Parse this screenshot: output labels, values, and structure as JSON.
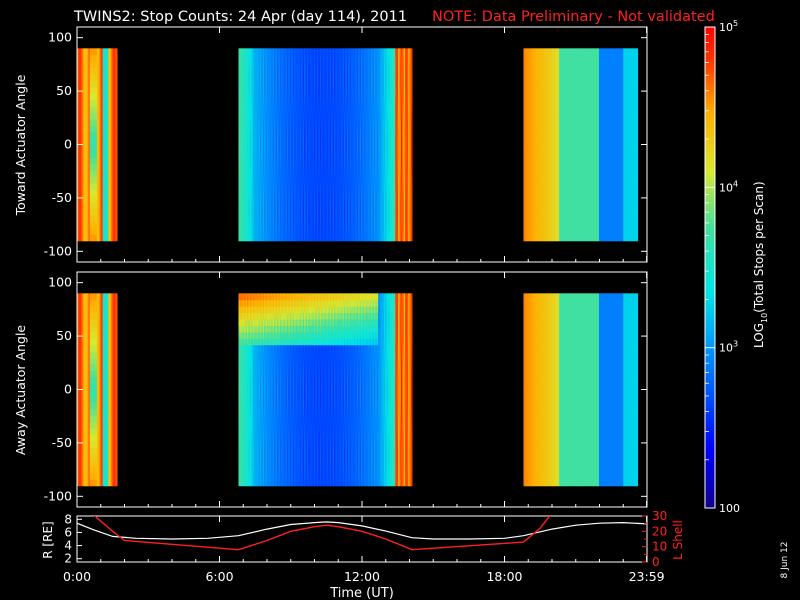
{
  "header": {
    "title": "TWINS2: Stop Counts: 24 Apr (day 114), 2011",
    "note": "NOTE: Data Preliminary - Not validated"
  },
  "chart_data": [
    {
      "type": "heatmap",
      "panel": "toward",
      "ylabel": "Toward Actuator Angle",
      "ylim": [
        -110,
        110
      ],
      "y_range_data": [
        -90,
        90
      ],
      "yticks": [
        "100",
        "50",
        "0",
        "-50",
        "-100"
      ],
      "data_segments_hours": [
        [
          0.0,
          1.7
        ],
        [
          6.8,
          14.1
        ],
        [
          18.8,
          23.6
        ]
      ],
      "color_scale": "log",
      "note": "per-bin values approximated by color"
    },
    {
      "type": "heatmap",
      "panel": "away",
      "ylabel": "Away Actuator Angle",
      "ylim": [
        -110,
        110
      ],
      "y_range_data": [
        -90,
        90
      ],
      "yticks": [
        "100",
        "50",
        "0",
        "-50",
        "-100"
      ],
      "data_segments_hours": [
        [
          0.0,
          1.7
        ],
        [
          6.8,
          14.1
        ],
        [
          18.8,
          23.6
        ]
      ],
      "color_scale": "log"
    },
    {
      "type": "line",
      "panel": "orbit",
      "xlabel": "Time (UT)",
      "xticks": [
        "0:00",
        "6:00",
        "12:00",
        "18:00",
        "23:59"
      ],
      "left_axis": {
        "label": "R [RE]",
        "ylim": [
          1.5,
          8.5
        ],
        "ticks": [
          "8",
          "6",
          "4",
          "2"
        ]
      },
      "right_axis": {
        "label": "L Shell",
        "ylim": [
          0,
          30
        ],
        "ticks": [
          "30",
          "20",
          "10",
          "0"
        ],
        "minor_ticks": [
          "25",
          "15",
          "5"
        ]
      },
      "series": [
        {
          "name": "R [RE]",
          "color": "#ffffff",
          "x": [
            0.0,
            0.7,
            1.5,
            2.5,
            4.0,
            5.5,
            6.8,
            8.0,
            9.0,
            10.0,
            10.5,
            11.0,
            12.0,
            13.0,
            14.1,
            15.0,
            16.5,
            18.0,
            18.8,
            20.0,
            21.0,
            22.0,
            23.0,
            23.98
          ],
          "values": [
            7.4,
            6.4,
            5.4,
            5.1,
            5.0,
            5.1,
            5.5,
            6.5,
            7.2,
            7.5,
            7.6,
            7.5,
            7.0,
            6.2,
            5.2,
            5.0,
            5.0,
            5.1,
            5.5,
            6.5,
            7.1,
            7.4,
            7.5,
            7.3
          ]
        },
        {
          "name": "L Shell",
          "color": "#ff2020",
          "x": [
            0.6,
            1.5,
            2.0,
            6.8,
            8.0,
            9.0,
            10.0,
            10.5,
            11.0,
            12.0,
            13.0,
            14.1,
            18.8,
            19.5,
            20.0
          ],
          "values": [
            32,
            20,
            14,
            8,
            14,
            20,
            23,
            24,
            23,
            20,
            15,
            8,
            13,
            22,
            32
          ]
        }
      ]
    }
  ],
  "colorbar": {
    "label_prefix": "LOG",
    "label_sub": "10",
    "label_suffix": "(Total Stops per Scan)",
    "ticks": [
      {
        "base": "10",
        "exp": "5",
        "value": 100000
      },
      {
        "base": "10",
        "exp": "4",
        "value": 10000
      },
      {
        "base": "10",
        "exp": "3",
        "value": 1000
      },
      {
        "base": "",
        "exp": "",
        "label": "100",
        "value": 100
      }
    ]
  },
  "footer": {
    "date_stamp": "8 Jun 12"
  }
}
